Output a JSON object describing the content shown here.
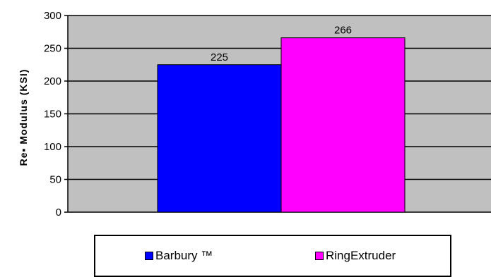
{
  "chart_data": {
    "type": "bar",
    "title": "",
    "xlabel": "",
    "ylabel": "Re▪ Modulus (KSI)",
    "ylim": [
      0,
      300
    ],
    "yticks": [
      0,
      50,
      100,
      150,
      200,
      250,
      300
    ],
    "grid": true,
    "legend": "bottom",
    "plot_background": "#c0c0c0",
    "series": [
      {
        "name": "Barbury ™",
        "value": 225,
        "label": "225",
        "color": "#0000ff"
      },
      {
        "name": "RingExtruder",
        "value": 266,
        "label": "266",
        "color": "#ff00ff"
      }
    ]
  }
}
